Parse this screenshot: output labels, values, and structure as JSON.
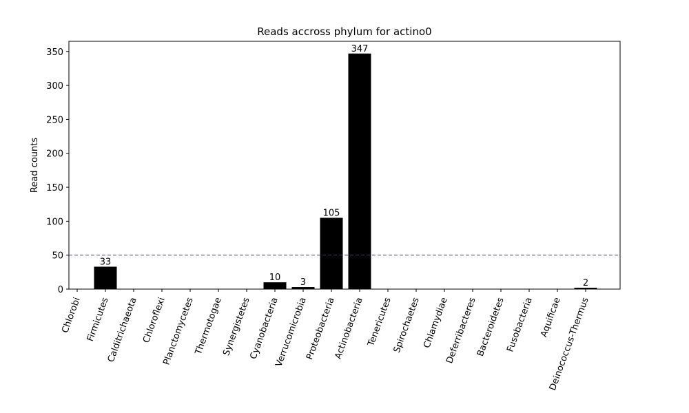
{
  "chart_data": {
    "type": "bar",
    "title": "Reads accross phylum for actino0",
    "xlabel": "",
    "ylabel": "Read counts",
    "categories": [
      "Chlorobi",
      "Firmicutes",
      "Calditrichaeota",
      "Chloroflexi",
      "Planctomycetes",
      "Thermotogae",
      "Synergistetes",
      "Cyanobacteria",
      "Verrucomicrobia",
      "Proteobacteria",
      "Actinobacteria",
      "Tenericutes",
      "Spirochaetes",
      "Chlamydiae",
      "Deferribacteres",
      "Bacteroidetes",
      "Fusobacteria",
      "Aquificae",
      "Deinococcus-Thermus"
    ],
    "values": [
      0,
      33,
      0,
      0,
      0,
      0,
      0,
      10,
      3,
      105,
      347,
      0,
      0,
      0,
      0,
      0,
      0,
      0,
      2
    ],
    "ylim": [
      0,
      365
    ],
    "yticks": [
      0,
      50,
      100,
      150,
      200,
      250,
      300,
      350
    ],
    "threshold": 50,
    "bar_color": "#000000",
    "threshold_color": "#3b3b6b",
    "grid": false,
    "data_labels_shown_for_nonzero": true
  }
}
